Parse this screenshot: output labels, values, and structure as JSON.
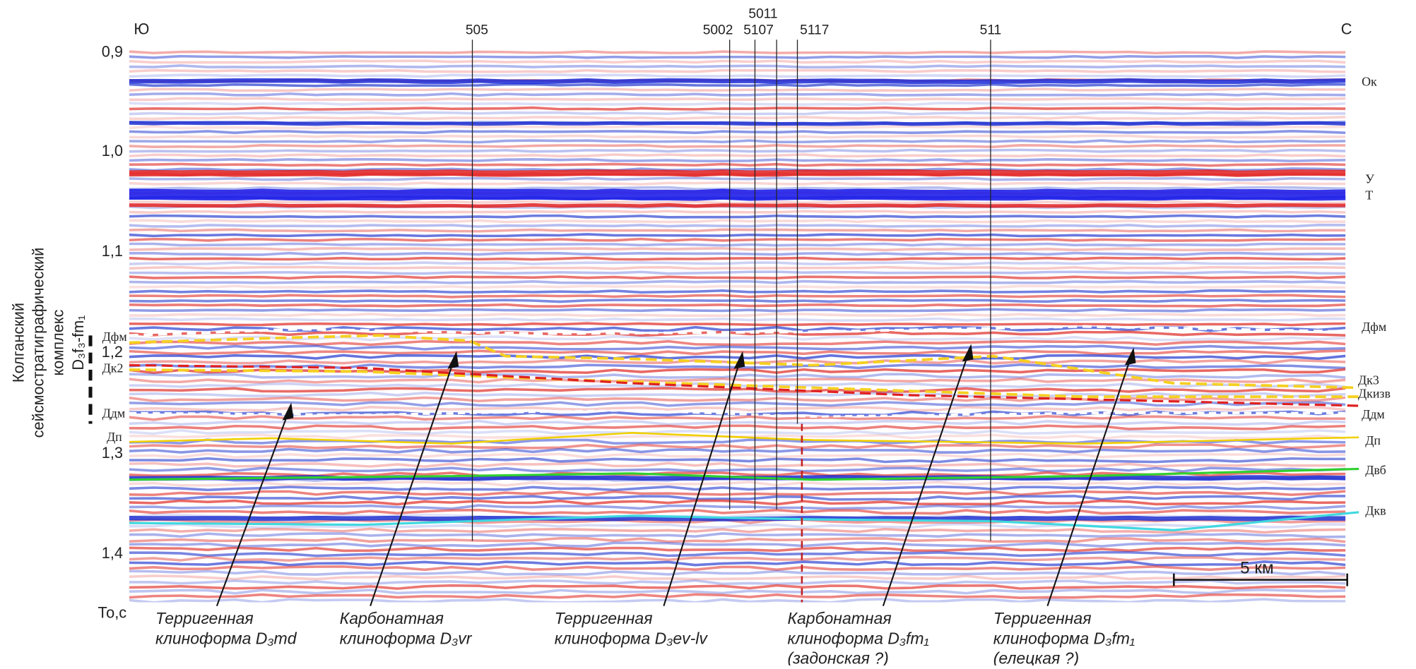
{
  "directions": {
    "south": "Ю",
    "north": "С"
  },
  "axis": {
    "ticks": [
      "0,9",
      "1,0",
      "1,1",
      "1,2",
      "1,3",
      "1,4"
    ],
    "unit": "То,с"
  },
  "wells": [
    "505",
    "5002",
    "5107",
    "5011",
    "5117",
    "511"
  ],
  "horizons_right": [
    "Ок",
    "У",
    "Т",
    "Дфм",
    "Дк3",
    "Дкизв",
    "Ддм",
    "Дп",
    "Двб",
    "Дкв"
  ],
  "horizons_left": [
    "Дфм",
    "Дк2",
    "Ддм",
    "Дп"
  ],
  "complex_label": [
    "Колганский",
    "сейсмостратиграфический",
    "комплекс",
    "D₃f₃-fm₁"
  ],
  "scale": "5 км",
  "annotations": [
    {
      "line1": "Терригенная",
      "line2": "клиноформа D₃md"
    },
    {
      "line1": "Карбонатная",
      "line2": "клиноформа D₃vr"
    },
    {
      "line1": "Терригенная",
      "line2": "клиноформа D₃ev-lv"
    },
    {
      "line1": "Карбонатная",
      "line2": "клиноформа D₃fm₁",
      "line3": "(задонская ?)"
    },
    {
      "line1": "Терригенная",
      "line2": "клиноформа D₃fm₁",
      "line3": "(елецкая ?)"
    }
  ]
}
